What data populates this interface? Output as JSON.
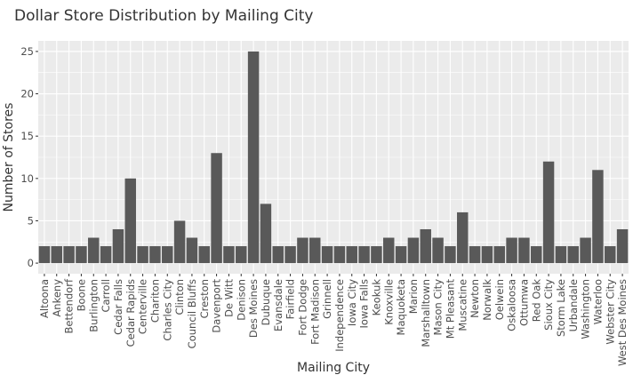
{
  "chart_data": {
    "type": "bar",
    "title": "Dollar Store Distribution by Mailing City",
    "xlabel": "Mailing City",
    "ylabel": "Number of Stores",
    "ylim": [
      -1.25,
      26.25
    ],
    "yticks": [
      0,
      5,
      10,
      15,
      20,
      25
    ],
    "grid": true,
    "legend": "none",
    "bar_color": "#595959",
    "panel_color": "#ebebeb",
    "grid_color": "#ffffff",
    "categories": [
      "Altoona",
      "Ankeny",
      "Bettendorf",
      "Boone",
      "Burlington",
      "Carroll",
      "Cedar Falls",
      "Cedar Rapids",
      "Centerville",
      "Chariton",
      "Charles City",
      "Clinton",
      "Council Bluffs",
      "Creston",
      "Davenport",
      "De Witt",
      "Denison",
      "Des Moines",
      "Dubuque",
      "Evansdale",
      "Fairfield",
      "Fort Dodge",
      "Fort Madison",
      "Grinnell",
      "Independence",
      "Iowa City",
      "Iowa Falls",
      "Keokuk",
      "Knoxville",
      "Maquoketa",
      "Marion",
      "Marshalltown",
      "Mason City",
      "Mt Pleasant",
      "Muscatine",
      "Newton",
      "Norwalk",
      "Oelwein",
      "Oskaloosa",
      "Ottumwa",
      "Red Oak",
      "Sioux City",
      "Storm Lake",
      "Urbandale",
      "Washington",
      "Waterloo",
      "Webster City",
      "West Des Moines"
    ],
    "values": [
      2,
      2,
      2,
      2,
      3,
      2,
      4,
      10,
      2,
      2,
      2,
      5,
      3,
      2,
      13,
      2,
      2,
      25,
      7,
      2,
      2,
      3,
      3,
      2,
      2,
      2,
      2,
      2,
      3,
      2,
      3,
      4,
      3,
      2,
      6,
      2,
      2,
      2,
      3,
      3,
      2,
      12,
      2,
      2,
      3,
      11,
      2,
      4
    ]
  }
}
